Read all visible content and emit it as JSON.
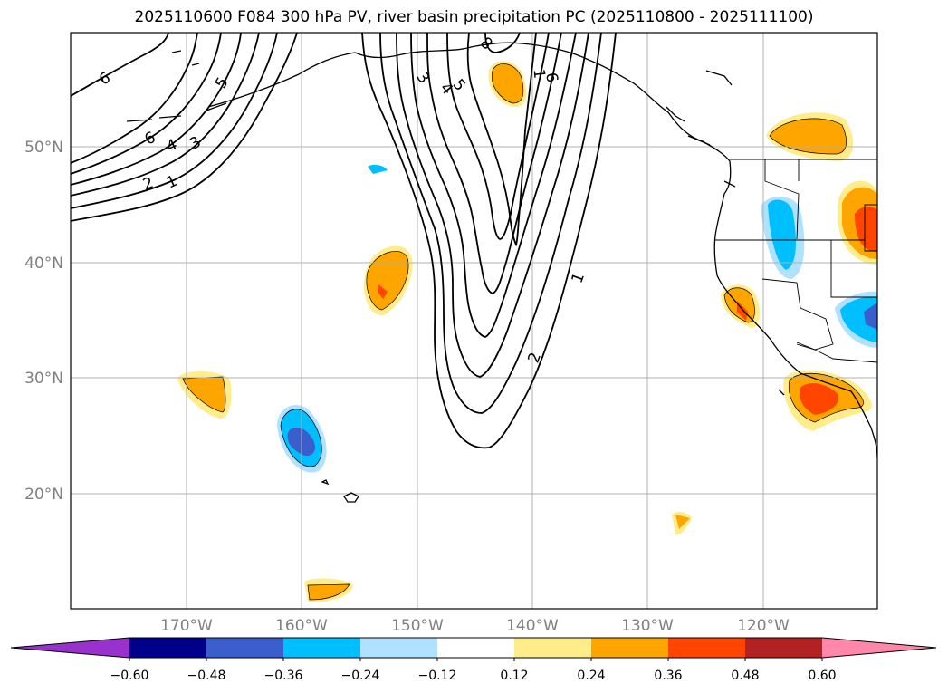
{
  "title": "2025110600 F084 300 hPa PV, river basin precipitation PC (2025110800 - 2025111100)",
  "map": {
    "lat_labels": [
      "50°N",
      "40°N",
      "30°N",
      "20°N"
    ],
    "lon_labels": [
      "170°W",
      "160°W",
      "150°W",
      "140°W",
      "130°W",
      "120°W"
    ]
  },
  "pv_contour_labels": [
    "6",
    "5",
    "6",
    "4",
    "3",
    "2",
    "1",
    "3",
    "4",
    "5",
    "8",
    "6",
    "1",
    "2",
    "1"
  ],
  "colorbar": {
    "ticks": [
      "−0.60",
      "−0.48",
      "−0.36",
      "−0.24",
      "−0.12",
      "0.12",
      "0.24",
      "0.36",
      "0.48",
      "0.60"
    ],
    "colors": [
      "#9932cc",
      "#00008b",
      "#3a5fcd",
      "#00bfff",
      "#b0e2ff",
      "#ffffff",
      "#ffec8b",
      "#ffa500",
      "#ff4500",
      "#b22222",
      "#ff88aa"
    ]
  }
}
